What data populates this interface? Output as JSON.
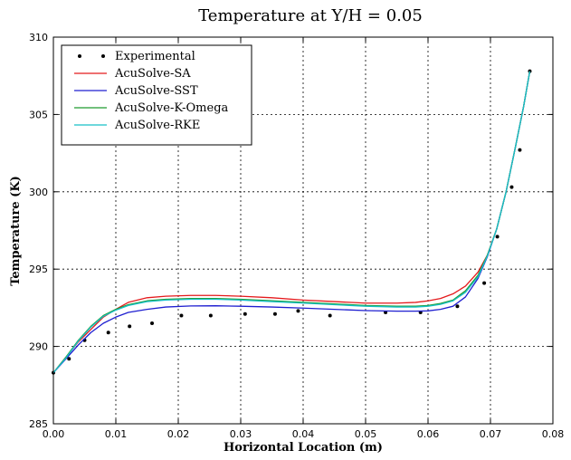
{
  "chart_data": {
    "type": "line",
    "title": "Temperature at Y/H = 0.05",
    "xlabel": "Horizontal Location (m)",
    "ylabel": "Temperature (K)",
    "xlim": [
      0.0,
      0.08
    ],
    "ylim": [
      285,
      310
    ],
    "xticks": [
      "0.00",
      "0.01",
      "0.02",
      "0.03",
      "0.04",
      "0.05",
      "0.06",
      "0.07",
      "0.08"
    ],
    "yticks": [
      "285",
      "290",
      "295",
      "300",
      "305",
      "310"
    ],
    "grid": true,
    "legend_position": "top-left",
    "series": [
      {
        "name": "Experimental",
        "kind": "scatter",
        "color": "#000000",
        "x": [
          0.0,
          0.0025,
          0.005,
          0.0088,
          0.0122,
          0.0158,
          0.0205,
          0.0252,
          0.0307,
          0.0355,
          0.0392,
          0.0443,
          0.0532,
          0.0588,
          0.0647,
          0.069,
          0.0711,
          0.0734,
          0.0747,
          0.0763
        ],
        "y": [
          288.3,
          289.2,
          290.4,
          290.9,
          291.3,
          291.5,
          292.0,
          292.0,
          292.1,
          292.1,
          292.3,
          292.0,
          292.2,
          292.2,
          292.6,
          294.1,
          297.1,
          300.3,
          302.7,
          307.8
        ]
      },
      {
        "name": "AcuSolve-SA",
        "kind": "line",
        "color": "#e41a1c",
        "x": [
          0.0,
          0.002,
          0.004,
          0.006,
          0.008,
          0.01,
          0.012,
          0.015,
          0.018,
          0.022,
          0.026,
          0.03,
          0.035,
          0.04,
          0.045,
          0.05,
          0.055,
          0.058,
          0.06,
          0.062,
          0.064,
          0.066,
          0.068,
          0.0695,
          0.071,
          0.0725,
          0.074,
          0.0753,
          0.0763
        ],
        "y": [
          288.3,
          289.3,
          290.3,
          291.1,
          291.9,
          292.4,
          292.85,
          293.15,
          293.25,
          293.3,
          293.3,
          293.25,
          293.15,
          293.0,
          292.9,
          292.8,
          292.8,
          292.85,
          292.95,
          293.1,
          293.4,
          293.9,
          294.8,
          295.9,
          297.6,
          300.0,
          302.9,
          305.5,
          307.8
        ]
      },
      {
        "name": "AcuSolve-SST",
        "kind": "line",
        "color": "#1f1fd0",
        "x": [
          0.0,
          0.002,
          0.004,
          0.006,
          0.008,
          0.01,
          0.012,
          0.015,
          0.018,
          0.022,
          0.026,
          0.03,
          0.035,
          0.04,
          0.045,
          0.05,
          0.055,
          0.058,
          0.06,
          0.062,
          0.064,
          0.066,
          0.068,
          0.0695,
          0.071,
          0.0725,
          0.074,
          0.0753,
          0.0763
        ],
        "y": [
          288.3,
          289.2,
          290.1,
          290.9,
          291.5,
          291.9,
          292.2,
          292.4,
          292.55,
          292.62,
          292.63,
          292.6,
          292.55,
          292.48,
          292.4,
          292.32,
          292.28,
          292.28,
          292.3,
          292.4,
          292.6,
          293.2,
          294.4,
          295.8,
          297.6,
          300.0,
          302.9,
          305.5,
          307.8
        ]
      },
      {
        "name": "AcuSolve-K-Omega",
        "kind": "line",
        "color": "#1f9a2f",
        "x": [
          0.0,
          0.002,
          0.004,
          0.006,
          0.008,
          0.01,
          0.012,
          0.015,
          0.018,
          0.022,
          0.026,
          0.03,
          0.035,
          0.04,
          0.045,
          0.05,
          0.055,
          0.058,
          0.06,
          0.062,
          0.064,
          0.066,
          0.068,
          0.0695,
          0.071,
          0.0725,
          0.074,
          0.0753,
          0.0763
        ],
        "y": [
          288.3,
          289.3,
          290.4,
          291.3,
          292.0,
          292.4,
          292.7,
          292.95,
          293.05,
          293.1,
          293.1,
          293.05,
          292.95,
          292.85,
          292.75,
          292.65,
          292.6,
          292.6,
          292.65,
          292.78,
          293.0,
          293.6,
          294.6,
          295.9,
          297.6,
          300.0,
          302.9,
          305.5,
          307.8
        ]
      },
      {
        "name": "AcuSolve-RKE",
        "kind": "line",
        "color": "#17c0c8",
        "x": [
          0.0,
          0.002,
          0.004,
          0.006,
          0.008,
          0.01,
          0.012,
          0.015,
          0.018,
          0.022,
          0.026,
          0.03,
          0.035,
          0.04,
          0.045,
          0.05,
          0.055,
          0.058,
          0.06,
          0.062,
          0.064,
          0.066,
          0.068,
          0.0695,
          0.071,
          0.0725,
          0.074,
          0.0753,
          0.0763
        ],
        "y": [
          288.3,
          289.25,
          290.35,
          291.25,
          291.95,
          292.35,
          292.65,
          292.9,
          293.0,
          293.05,
          293.05,
          293.0,
          292.9,
          292.8,
          292.7,
          292.6,
          292.55,
          292.55,
          292.6,
          292.72,
          292.95,
          293.5,
          294.5,
          295.85,
          297.6,
          300.0,
          302.9,
          305.5,
          307.8
        ]
      }
    ]
  }
}
